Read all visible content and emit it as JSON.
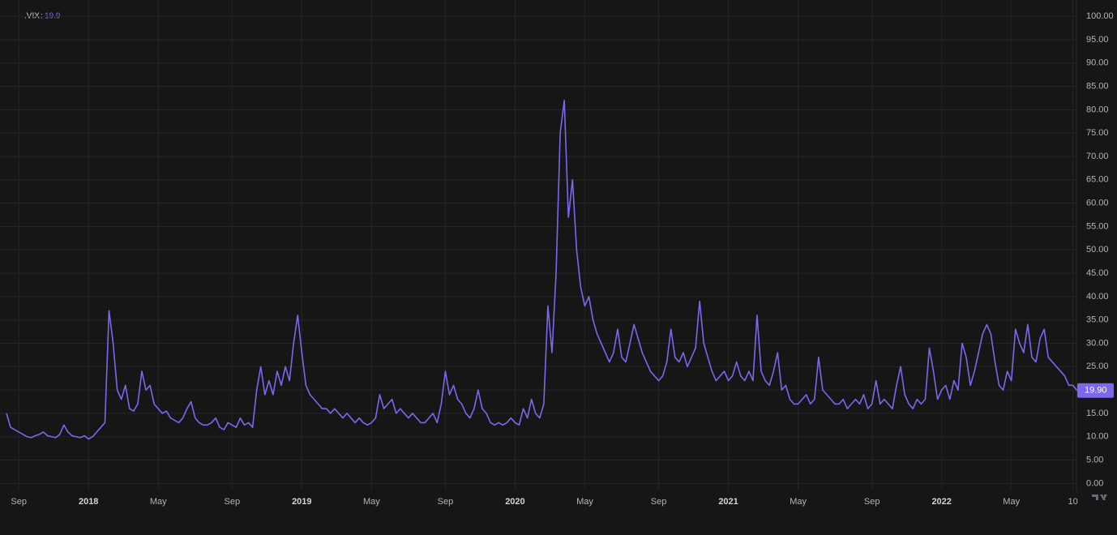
{
  "chart_data": {
    "type": "line",
    "symbol": ".VIX",
    "legend_value": 19.9,
    "color": "#7b68ee",
    "grid": true,
    "values": [
      15,
      12,
      11.5,
      11,
      10.5,
      10,
      9.8,
      10.2,
      10.5,
      11,
      10.2,
      10,
      9.8,
      10.5,
      12.5,
      11,
      10.2,
      10,
      9.8,
      10.2,
      9.5,
      10,
      11,
      12,
      13,
      37,
      30,
      20,
      18,
      21,
      16,
      15.5,
      17,
      24,
      20,
      21,
      17,
      16,
      15,
      15.5,
      14,
      13.5,
      13,
      14,
      16,
      17.5,
      14,
      13,
      12.5,
      12.5,
      13,
      14,
      12,
      11.5,
      13,
      12.5,
      12,
      14,
      12.5,
      13,
      12,
      20,
      25,
      19,
      22,
      19,
      24,
      21,
      25,
      22,
      30,
      36,
      28,
      21,
      19,
      18,
      17,
      16,
      16,
      15,
      16,
      15,
      14,
      15,
      14,
      13,
      14,
      13,
      12.5,
      13,
      14,
      19,
      16,
      17,
      18,
      15,
      16,
      15,
      14,
      15,
      14,
      13,
      13,
      14,
      15,
      13,
      17,
      24,
      19,
      21,
      18,
      17,
      15,
      14,
      16,
      20,
      16,
      15,
      13,
      12.5,
      13,
      12.5,
      13,
      14,
      13,
      12.5,
      16,
      14,
      18,
      15,
      14,
      17,
      38,
      28,
      45,
      75,
      82,
      57,
      65,
      50,
      42,
      38,
      40,
      35,
      32,
      30,
      28,
      26,
      28,
      33,
      27,
      26,
      30,
      34,
      31,
      28,
      26,
      24,
      23,
      22,
      23,
      26,
      33,
      27,
      26,
      28,
      25,
      27,
      29,
      39,
      30,
      27,
      24,
      22,
      23,
      24,
      22,
      23,
      26,
      23,
      22,
      24,
      22,
      36,
      24,
      22,
      21,
      24,
      28,
      20,
      21,
      18,
      17,
      17,
      18,
      19,
      17,
      18,
      27,
      20,
      19,
      18,
      17,
      17,
      18,
      16,
      17,
      18,
      17,
      19,
      16,
      17,
      22,
      17,
      18,
      17,
      16,
      21,
      25,
      19,
      17,
      16,
      18,
      17,
      18,
      29,
      24,
      18,
      20,
      21,
      18,
      22,
      20,
      30,
      27,
      21,
      24,
      28,
      32,
      34,
      32,
      26,
      21,
      20,
      24,
      22,
      33,
      30,
      28,
      34,
      27,
      26,
      31,
      33,
      27,
      26,
      25,
      24,
      23,
      21,
      21,
      19.9
    ],
    "last_price": {
      "value": 19.9,
      "label": "19.90"
    },
    "ylim": [
      -1.5,
      103.5
    ],
    "yticks": [
      {
        "value": 0,
        "label": "0.00"
      },
      {
        "value": 5,
        "label": "5.00"
      },
      {
        "value": 10,
        "label": "10.00"
      },
      {
        "value": 15,
        "label": "15.00"
      },
      {
        "value": 20,
        "label": "20.00"
      },
      {
        "value": 25,
        "label": "25.00"
      },
      {
        "value": 30,
        "label": "30.00"
      },
      {
        "value": 35,
        "label": "35.00"
      },
      {
        "value": 40,
        "label": "40.00"
      },
      {
        "value": 45,
        "label": "45.00"
      },
      {
        "value": 50,
        "label": "50.00"
      },
      {
        "value": 55,
        "label": "55.00"
      },
      {
        "value": 60,
        "label": "60.00"
      },
      {
        "value": 65,
        "label": "65.00"
      },
      {
        "value": 70,
        "label": "70.00"
      },
      {
        "value": 75,
        "label": "75.00"
      },
      {
        "value": 80,
        "label": "80.00"
      },
      {
        "value": 85,
        "label": "85.00"
      },
      {
        "value": 90,
        "label": "90.00"
      },
      {
        "value": 95,
        "label": "95.00"
      },
      {
        "value": 100,
        "label": "100.00"
      }
    ],
    "xticks": [
      {
        "value": 3,
        "label": "Sep"
      },
      {
        "value": 20,
        "label": "2018"
      },
      {
        "value": 37,
        "label": "May"
      },
      {
        "value": 55,
        "label": "Sep"
      },
      {
        "value": 72,
        "label": "2019"
      },
      {
        "value": 89,
        "label": "May"
      },
      {
        "value": 107,
        "label": "Sep"
      },
      {
        "value": 124,
        "label": "2020"
      },
      {
        "value": 141,
        "label": "May"
      },
      {
        "value": 159,
        "label": "Sep"
      },
      {
        "value": 176,
        "label": "2021"
      },
      {
        "value": 193,
        "label": "May"
      },
      {
        "value": 211,
        "label": "Sep"
      },
      {
        "value": 228,
        "label": "2022"
      },
      {
        "value": 245,
        "label": "May"
      },
      {
        "value": 260,
        "label": "10"
      }
    ]
  }
}
